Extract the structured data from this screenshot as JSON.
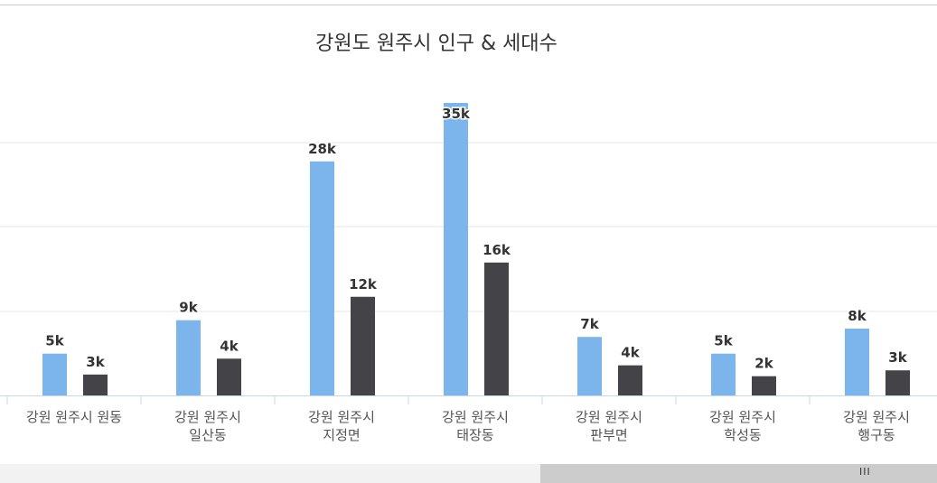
{
  "chart_data": {
    "type": "bar",
    "title": "강원도 원주시 인구 & 세대수",
    "categories": [
      [
        "강원 원주시 원동"
      ],
      [
        "강원 원주시",
        "일산동"
      ],
      [
        "강원 원주시",
        "지정면"
      ],
      [
        "강원 원주시",
        "태장동"
      ],
      [
        "강원 원주시",
        "판부면"
      ],
      [
        "강원 원주시",
        "학성동"
      ],
      [
        "강원 원주시",
        "행구동"
      ]
    ],
    "series": [
      {
        "values": [
          5,
          9,
          28,
          35,
          7,
          5,
          8
        ],
        "labels": [
          "5k",
          "9k",
          "28k",
          "35k",
          "7k",
          "5k",
          "8k"
        ],
        "color": "#7cb5ec"
      },
      {
        "values": [
          2.5,
          4.4,
          11.8,
          15.9,
          3.6,
          2.3,
          3.0
        ],
        "labels": [
          "3k",
          "4k",
          "12k",
          "16k",
          "4k",
          "2k",
          "3k"
        ],
        "color": "#434348"
      }
    ],
    "ylim": [
      0,
      35
    ],
    "grid": true
  },
  "scrollbar": {
    "grip": "III"
  }
}
